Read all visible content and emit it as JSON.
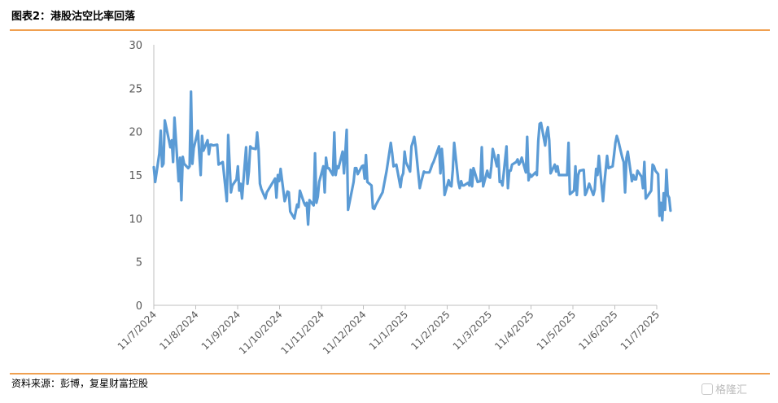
{
  "header": {
    "title": "图表2：港股沽空比率回落"
  },
  "footer": {
    "source": "资料来源：彭博，复星财富控股",
    "watermark": "格隆汇"
  },
  "colors": {
    "line": "#5b9bd5",
    "rule": "#f0a050",
    "axis": "#bfbfbf",
    "tick_text": "#595959"
  },
  "chart_data": {
    "type": "line",
    "title": "",
    "xlabel": "",
    "ylabel": "",
    "ylim": [
      0,
      30
    ],
    "yticks": [
      0,
      5,
      10,
      15,
      20,
      25,
      30
    ],
    "xlim": [
      "2024-11-07",
      "2025-11-07"
    ],
    "xtick_labels": [
      "11/7/2024",
      "11/8/2024",
      "11/9/2024",
      "11/10/2024",
      "11/11/2024",
      "11/12/2024",
      "11/1/2025",
      "11/2/2025",
      "11/3/2025",
      "11/4/2025",
      "11/5/2025",
      "11/6/2025",
      "11/7/2025"
    ],
    "grid": false,
    "legend": "none",
    "series": [
      {
        "name": "",
        "points": [
          [
            "2024-11-07",
            15.9
          ],
          [
            "2024-11-08",
            14.2
          ],
          [
            "2024-11-11",
            17.5
          ],
          [
            "2024-11-12",
            20.1
          ],
          [
            "2024-11-13",
            16.0
          ],
          [
            "2024-11-14",
            16.3
          ],
          [
            "2024-11-15",
            21.3
          ],
          [
            "2024-11-18",
            19.0
          ],
          [
            "2024-11-19",
            18.2
          ],
          [
            "2024-11-20",
            19.0
          ],
          [
            "2024-11-21",
            16.5
          ],
          [
            "2024-11-22",
            21.6
          ],
          [
            "2024-11-25",
            14.3
          ],
          [
            "2024-11-26",
            17.0
          ],
          [
            "2024-11-27",
            12.1
          ],
          [
            "2024-11-28",
            17.1
          ],
          [
            "2024-11-29",
            16.3
          ],
          [
            "2024-12-02",
            15.8
          ],
          [
            "2024-12-03",
            16.0
          ],
          [
            "2024-12-04",
            24.6
          ],
          [
            "2024-12-05",
            16.3
          ],
          [
            "2024-12-06",
            18.1
          ],
          [
            "2024-12-09",
            20.1
          ],
          [
            "2024-12-10",
            17.4
          ],
          [
            "2024-12-11",
            15.0
          ],
          [
            "2024-12-12",
            19.5
          ],
          [
            "2024-12-13",
            17.8
          ],
          [
            "2024-12-16",
            19.0
          ],
          [
            "2024-12-17",
            17.4
          ],
          [
            "2024-12-18",
            18.5
          ],
          [
            "2024-12-19",
            18.5
          ],
          [
            "2024-12-20",
            18.4
          ],
          [
            "2024-12-23",
            18.5
          ],
          [
            "2024-12-24",
            16.2
          ],
          [
            "2024-12-27",
            16.5
          ],
          [
            "2024-12-30",
            12.0
          ],
          [
            "2024-12-31",
            19.6
          ],
          [
            "2025-01-02",
            13.0
          ],
          [
            "2025-01-03",
            13.8
          ],
          [
            "2025-01-06",
            14.5
          ],
          [
            "2025-01-07",
            16.0
          ],
          [
            "2025-01-08",
            13.2
          ],
          [
            "2025-01-09",
            14.0
          ],
          [
            "2025-01-10",
            12.3
          ],
          [
            "2025-01-13",
            18.2
          ],
          [
            "2025-01-14",
            14.0
          ],
          [
            "2025-01-15",
            15.4
          ],
          [
            "2025-01-16",
            18.3
          ],
          [
            "2025-01-17",
            18.1
          ],
          [
            "2025-01-20",
            18.0
          ],
          [
            "2025-01-21",
            19.9
          ],
          [
            "2025-01-22",
            18.0
          ],
          [
            "2025-01-23",
            14.0
          ],
          [
            "2025-01-24",
            13.4
          ],
          [
            "2025-01-27",
            12.3
          ],
          [
            "2025-01-28",
            13.0
          ],
          [
            "2025-02-03",
            14.6
          ],
          [
            "2025-02-04",
            12.4
          ],
          [
            "2025-02-05",
            15.0
          ],
          [
            "2025-02-06",
            14.3
          ],
          [
            "2025-02-07",
            15.7
          ],
          [
            "2025-02-10",
            12.0
          ],
          [
            "2025-02-11",
            12.5
          ],
          [
            "2025-02-12",
            13.1
          ],
          [
            "2025-02-13",
            13.0
          ],
          [
            "2025-02-14",
            10.8
          ],
          [
            "2025-02-17",
            10.0
          ],
          [
            "2025-02-18",
            10.8
          ],
          [
            "2025-02-19",
            11.6
          ],
          [
            "2025-02-20",
            11.3
          ],
          [
            "2025-02-21",
            13.2
          ],
          [
            "2025-02-24",
            11.8
          ],
          [
            "2025-02-25",
            11.5
          ],
          [
            "2025-02-26",
            11.8
          ],
          [
            "2025-02-27",
            9.3
          ],
          [
            "2025-02-28",
            12.1
          ],
          [
            "2025-03-03",
            11.5
          ],
          [
            "2025-03-04",
            17.5
          ],
          [
            "2025-03-05",
            11.8
          ],
          [
            "2025-03-06",
            12.5
          ],
          [
            "2025-03-07",
            14.2
          ],
          [
            "2025-03-10",
            16.0
          ],
          [
            "2025-03-11",
            13.0
          ],
          [
            "2025-03-12",
            17.0
          ],
          [
            "2025-03-13",
            15.8
          ],
          [
            "2025-03-14",
            15.8
          ],
          [
            "2025-03-17",
            15.0
          ],
          [
            "2025-03-18",
            19.9
          ],
          [
            "2025-03-19",
            15.0
          ],
          [
            "2025-03-20",
            16.0
          ],
          [
            "2025-03-21",
            15.8
          ],
          [
            "2025-03-24",
            17.7
          ],
          [
            "2025-03-25",
            15.2
          ],
          [
            "2025-03-26",
            17.5
          ],
          [
            "2025-03-27",
            20.2
          ],
          [
            "2025-03-28",
            11.0
          ],
          [
            "2025-03-31",
            13.4
          ],
          [
            "2025-04-01",
            14.2
          ],
          [
            "2025-04-02",
            15.8
          ],
          [
            "2025-04-03",
            15.8
          ],
          [
            "2025-04-04",
            15.1
          ],
          [
            "2025-04-07",
            16.0
          ],
          [
            "2025-04-08",
            16.1
          ],
          [
            "2025-04-09",
            14.6
          ],
          [
            "2025-04-10",
            17.3
          ],
          [
            "2025-04-11",
            14.2
          ],
          [
            "2025-04-14",
            13.8
          ],
          [
            "2025-04-15",
            11.2
          ],
          [
            "2025-04-16",
            11.1
          ],
          [
            "2025-04-17",
            11.5
          ],
          [
            "2025-04-22",
            13.0
          ],
          [
            "2025-04-25",
            15.5
          ],
          [
            "2025-04-28",
            18.7
          ],
          [
            "2025-04-29",
            17.5
          ],
          [
            "2025-04-30",
            16.0
          ],
          [
            "2025-05-02",
            16.2
          ],
          [
            "2025-05-05",
            13.6
          ],
          [
            "2025-05-06",
            14.8
          ],
          [
            "2025-05-07",
            15.2
          ],
          [
            "2025-05-08",
            17.7
          ],
          [
            "2025-05-09",
            16.5
          ],
          [
            "2025-05-12",
            15.4
          ],
          [
            "2025-05-13",
            18.3
          ],
          [
            "2025-05-14",
            18.8
          ],
          [
            "2025-05-15",
            19.4
          ],
          [
            "2025-05-16",
            18.3
          ],
          [
            "2025-05-19",
            13.5
          ],
          [
            "2025-05-20",
            14.2
          ],
          [
            "2025-05-21",
            14.8
          ],
          [
            "2025-05-22",
            15.4
          ],
          [
            "2025-05-23",
            15.3
          ],
          [
            "2025-05-26",
            15.3
          ],
          [
            "2025-05-27",
            15.7
          ],
          [
            "2025-05-28",
            16.2
          ],
          [
            "2025-05-29",
            16.5
          ],
          [
            "2025-06-02",
            18.3
          ],
          [
            "2025-06-03",
            15.2
          ],
          [
            "2025-06-04",
            18.0
          ],
          [
            "2025-06-05",
            16.0
          ],
          [
            "2025-06-06",
            12.7
          ],
          [
            "2025-06-09",
            14.4
          ],
          [
            "2025-06-10",
            13.8
          ],
          [
            "2025-06-11",
            13.7
          ],
          [
            "2025-06-12",
            15.6
          ],
          [
            "2025-06-13",
            18.7
          ],
          [
            "2025-06-16",
            14.2
          ],
          [
            "2025-06-17",
            13.5
          ],
          [
            "2025-06-18",
            14.3
          ],
          [
            "2025-06-19",
            13.8
          ],
          [
            "2025-06-20",
            13.8
          ],
          [
            "2025-06-23",
            14.1
          ],
          [
            "2025-06-24",
            13.8
          ],
          [
            "2025-06-25",
            15.6
          ],
          [
            "2025-06-26",
            13.7
          ],
          [
            "2025-06-27",
            15.8
          ],
          [
            "2025-06-30",
            14.2
          ],
          [
            "2025-07-02",
            14.3
          ],
          [
            "2025-07-03",
            18.2
          ],
          [
            "2025-07-04",
            13.7
          ],
          [
            "2025-07-07",
            15.5
          ],
          [
            "2025-07-08",
            14.8
          ],
          [
            "2025-07-09",
            14.7
          ],
          [
            "2025-07-10",
            16.0
          ],
          [
            "2025-07-11",
            18.0
          ],
          [
            "2025-07-14",
            16.0
          ],
          [
            "2025-07-15",
            17.3
          ],
          [
            "2025-07-16",
            14.2
          ],
          [
            "2025-07-17",
            14.3
          ],
          [
            "2025-07-18",
            13.8
          ],
          [
            "2025-07-21",
            18.3
          ],
          [
            "2025-07-22",
            13.5
          ],
          [
            "2025-07-23",
            15.5
          ],
          [
            "2025-07-24",
            15.5
          ],
          [
            "2025-07-25",
            16.2
          ],
          [
            "2025-07-28",
            16.5
          ],
          [
            "2025-07-29",
            16.8
          ],
          [
            "2025-07-30",
            16.2
          ],
          [
            "2025-07-31",
            16.5
          ],
          [
            "2025-08-01",
            17.0
          ],
          [
            "2025-08-04",
            15.3
          ],
          [
            "2025-08-05",
            19.4
          ],
          [
            "2025-08-06",
            14.4
          ],
          [
            "2025-08-07",
            15.1
          ],
          [
            "2025-08-08",
            14.8
          ],
          [
            "2025-08-11",
            15.3
          ],
          [
            "2025-08-12",
            15.0
          ],
          [
            "2025-08-13",
            18.9
          ],
          [
            "2025-08-14",
            20.9
          ],
          [
            "2025-08-15",
            21.0
          ],
          [
            "2025-08-18",
            18.4
          ],
          [
            "2025-08-19",
            19.8
          ],
          [
            "2025-08-20",
            20.5
          ],
          [
            "2025-08-21",
            19.0
          ],
          [
            "2025-08-22",
            15.2
          ],
          [
            "2025-08-25",
            16.2
          ],
          [
            "2025-08-26",
            15.4
          ],
          [
            "2025-08-27",
            16.0
          ],
          [
            "2025-08-28",
            15.0
          ],
          [
            "2025-08-29",
            15.0
          ],
          [
            "2025-09-01",
            15.0
          ],
          [
            "2025-09-02",
            15.0
          ],
          [
            "2025-09-03",
            15.0
          ],
          [
            "2025-09-04",
            18.7
          ],
          [
            "2025-09-05",
            12.8
          ],
          [
            "2025-09-08",
            13.2
          ],
          [
            "2025-09-09",
            16.0
          ],
          [
            "2025-09-10",
            12.7
          ],
          [
            "2025-09-11",
            15.0
          ],
          [
            "2025-09-12",
            15.5
          ],
          [
            "2025-09-15",
            15.6
          ],
          [
            "2025-09-16",
            12.7
          ],
          [
            "2025-09-17",
            13.0
          ],
          [
            "2025-09-18",
            13.5
          ],
          [
            "2025-09-19",
            14.0
          ],
          [
            "2025-09-22",
            12.7
          ],
          [
            "2025-09-23",
            13.3
          ],
          [
            "2025-09-24",
            15.7
          ],
          [
            "2025-09-25",
            15.0
          ],
          [
            "2025-09-26",
            17.2
          ],
          [
            "2025-09-29",
            12.0
          ],
          [
            "2025-09-30",
            14.1
          ],
          [
            "2025-10-02",
            17.2
          ],
          [
            "2025-10-03",
            15.8
          ],
          [
            "2025-10-06",
            16.0
          ],
          [
            "2025-10-07",
            17.3
          ],
          [
            "2025-10-08",
            18.7
          ],
          [
            "2025-10-09",
            19.5
          ],
          [
            "2025-10-10",
            19.0
          ],
          [
            "2025-10-13",
            17.0
          ],
          [
            "2025-10-14",
            16.5
          ],
          [
            "2025-10-15",
            13.0
          ],
          [
            "2025-10-16",
            17.0
          ],
          [
            "2025-10-17",
            17.7
          ],
          [
            "2025-10-20",
            14.3
          ],
          [
            "2025-10-21",
            15.0
          ],
          [
            "2025-10-22",
            14.5
          ],
          [
            "2025-10-23",
            14.5
          ],
          [
            "2025-10-24",
            15.5
          ],
          [
            "2025-10-27",
            14.8
          ],
          [
            "2025-10-28",
            13.5
          ],
          [
            "2025-10-29",
            16.5
          ],
          [
            "2025-10-30",
            12.3
          ],
          [
            "2025-10-31",
            12.5
          ],
          [
            "2025-11-03",
            13.2
          ],
          [
            "2025-11-04",
            16.2
          ],
          [
            "2025-11-05",
            16.0
          ],
          [
            "2025-11-06",
            15.5
          ],
          [
            "2025-11-07",
            15.3
          ],
          [
            "2025-11-08",
            15.1
          ],
          [
            "2025-11-09",
            10.3
          ],
          [
            "2025-11-10",
            11.8
          ],
          [
            "2025-11-11",
            9.8
          ],
          [
            "2025-11-12",
            12.9
          ],
          [
            "2025-11-13",
            11.0
          ],
          [
            "2025-11-14",
            15.6
          ],
          [
            "2025-11-15",
            12.7
          ],
          [
            "2025-11-16",
            12.4
          ],
          [
            "2025-11-17",
            10.9
          ]
        ]
      }
    ]
  }
}
